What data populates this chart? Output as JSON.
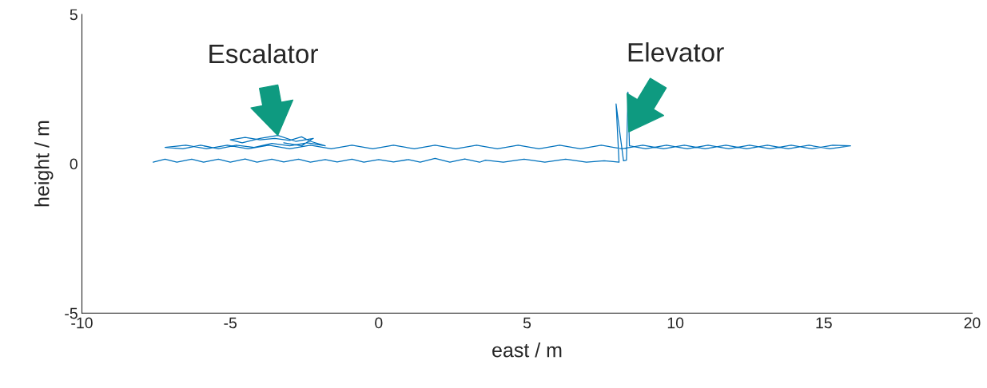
{
  "chart_data": {
    "type": "line",
    "xlabel": "east / m",
    "ylabel": "height / m",
    "xlim": [
      -10,
      20
    ],
    "ylim": [
      -5,
      5
    ],
    "xticks": [
      -10,
      -5,
      0,
      5,
      10,
      15,
      20
    ],
    "yticks": [
      -5,
      0,
      5
    ],
    "line_style": "solid",
    "marker": "none",
    "series": [
      {
        "color": "#0072bd",
        "x": [
          -7.6,
          -7.2,
          -6.8,
          -6.3,
          -5.9,
          -5.4,
          -5.0,
          -4.5,
          -4.1,
          -3.6,
          -3.2,
          -2.7,
          -2.3,
          -1.8,
          -1.4,
          -0.9,
          -0.5,
          0.0,
          0.5,
          1.0,
          1.4,
          1.9,
          2.4,
          2.9,
          3.4,
          3.6,
          4.2,
          4.9,
          5.6,
          6.3,
          7.0,
          7.6,
          8.1,
          8.0,
          8.25,
          8.35,
          8.4,
          8.45,
          9.0,
          9.7,
          10.4,
          11.1,
          11.8,
          12.5,
          13.2,
          13.9,
          14.6,
          15.3,
          15.9,
          15.2,
          14.5,
          13.8,
          13.1,
          12.4,
          11.7,
          11.0,
          10.3,
          9.6,
          8.9,
          8.2,
          7.5,
          6.8,
          6.1,
          5.4,
          4.7,
          4.0,
          3.3,
          2.6,
          1.9,
          1.2,
          0.5,
          -0.2,
          -0.9,
          -1.6,
          -2.3,
          -3.0,
          -3.7,
          -4.4,
          -5.1,
          -5.8,
          -6.5,
          -7.2,
          -6.6,
          -6.0,
          -5.4,
          -4.8,
          -4.2,
          -3.6,
          -3.0,
          -2.4,
          -1.8,
          -2.3,
          -2.6,
          -3.0,
          -3.5,
          -4.0,
          -4.5,
          -5.0,
          -4.6,
          -4.0,
          -3.4,
          -2.8,
          -2.2,
          -2.6,
          -3.2
        ],
        "values": [
          0.05,
          0.15,
          0.05,
          0.15,
          0.05,
          0.15,
          0.05,
          0.16,
          0.05,
          0.15,
          0.06,
          0.15,
          0.05,
          0.14,
          0.06,
          0.15,
          0.05,
          0.14,
          0.06,
          0.14,
          0.05,
          0.18,
          0.05,
          0.16,
          0.05,
          0.12,
          0.05,
          0.15,
          0.05,
          0.15,
          0.05,
          0.1,
          0.05,
          2.0,
          0.1,
          0.12,
          2.4,
          0.6,
          0.5,
          0.62,
          0.5,
          0.62,
          0.5,
          0.62,
          0.5,
          0.62,
          0.5,
          0.62,
          0.6,
          0.5,
          0.62,
          0.5,
          0.62,
          0.5,
          0.62,
          0.5,
          0.62,
          0.5,
          0.62,
          0.5,
          0.62,
          0.5,
          0.62,
          0.5,
          0.62,
          0.5,
          0.62,
          0.5,
          0.62,
          0.5,
          0.62,
          0.5,
          0.62,
          0.5,
          0.62,
          0.5,
          0.62,
          0.5,
          0.62,
          0.5,
          0.62,
          0.55,
          0.5,
          0.62,
          0.5,
          0.62,
          0.55,
          0.68,
          0.6,
          0.7,
          0.6,
          0.75,
          0.9,
          0.78,
          0.85,
          0.8,
          0.88,
          0.8,
          0.7,
          0.85,
          0.95,
          0.75,
          0.85,
          0.6,
          0.7
        ]
      }
    ],
    "annotations": [
      {
        "text": "Escalator",
        "x": -3.4,
        "y": 0.95
      },
      {
        "text": "Elevator",
        "x": 8.43,
        "y": 1.07
      }
    ]
  }
}
